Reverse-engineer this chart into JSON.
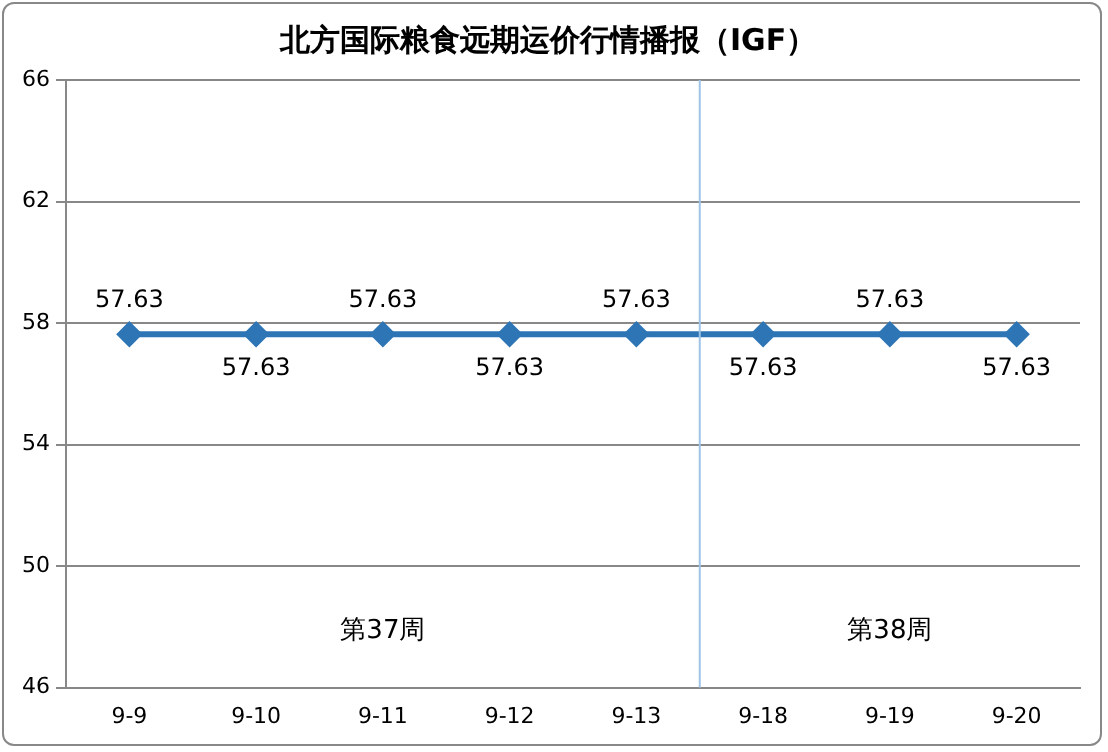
{
  "chart_data": {
    "type": "line",
    "title": "北方国际粮食远期运价行情播报（IGF）",
    "categories": [
      "9-9",
      "9-10",
      "9-11",
      "9-12",
      "9-13",
      "9-18",
      "9-19",
      "9-20"
    ],
    "series": [
      {
        "color": "#2e75b6",
        "values": [
          57.63,
          57.63,
          57.63,
          57.63,
          57.63,
          57.63,
          57.63,
          57.63
        ]
      }
    ],
    "ylim": [
      46,
      66
    ],
    "yticks": [
      46,
      50,
      54,
      58,
      62,
      66
    ],
    "grid": "y",
    "legend": false,
    "marker": "diamond",
    "data_labels": true,
    "annotations": [
      "第37周",
      "第38周"
    ],
    "ref_lines": [
      {
        "axis": "x",
        "value": "9-13",
        "color": "#9dc3e6"
      }
    ]
  }
}
